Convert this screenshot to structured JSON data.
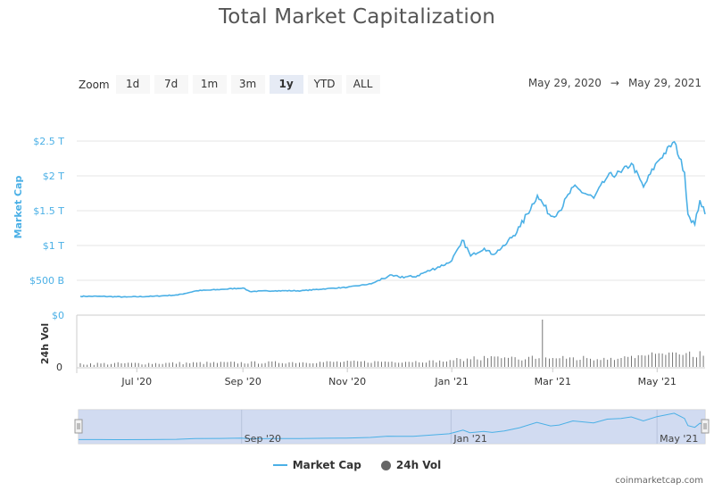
{
  "page": {
    "title": "Total Market Capitalization",
    "credit": "coinmarketcap.com"
  },
  "zoom": {
    "label": "Zoom",
    "buttons": [
      "1d",
      "7d",
      "1m",
      "3m",
      "1y",
      "YTD",
      "ALL"
    ],
    "active": "1y"
  },
  "range": {
    "from": "May 29, 2020",
    "arrow": "→",
    "to": "May 29, 2021"
  },
  "colors": {
    "market_cap": "#4bb0e6",
    "volume": "#666666",
    "navigator_fill": "#c9d5ee",
    "grid": "#e6e6e6"
  },
  "chart_data": {
    "type": "line",
    "title": "Total Market Capitalization",
    "x_labels": [
      "Jul '20",
      "Sep '20",
      "Nov '20",
      "Jan '21",
      "Mar '21",
      "May '21"
    ],
    "x_label_dates": [
      "2020-07-01",
      "2020-09-01",
      "2020-11-01",
      "2021-01-01",
      "2021-03-01",
      "2021-05-01"
    ],
    "x_range": [
      "2020-05-29",
      "2021-05-29"
    ],
    "series": [
      {
        "name": "Market Cap",
        "axis": "Market Cap",
        "unit": "USD trillions",
        "points": [
          [
            "2020-05-29",
            0.27
          ],
          [
            "2020-06-10",
            0.27
          ],
          [
            "2020-06-25",
            0.26
          ],
          [
            "2020-07-10",
            0.27
          ],
          [
            "2020-07-25",
            0.29
          ],
          [
            "2020-08-05",
            0.35
          ],
          [
            "2020-08-20",
            0.37
          ],
          [
            "2020-09-01",
            0.39
          ],
          [
            "2020-09-05",
            0.34
          ],
          [
            "2020-09-20",
            0.35
          ],
          [
            "2020-10-05",
            0.35
          ],
          [
            "2020-10-20",
            0.38
          ],
          [
            "2020-11-01",
            0.4
          ],
          [
            "2020-11-15",
            0.45
          ],
          [
            "2020-11-25",
            0.56
          ],
          [
            "2020-12-01",
            0.55
          ],
          [
            "2020-12-10",
            0.55
          ],
          [
            "2020-12-20",
            0.65
          ],
          [
            "2020-12-31",
            0.76
          ],
          [
            "2021-01-08",
            1.07
          ],
          [
            "2021-01-12",
            0.85
          ],
          [
            "2021-01-20",
            0.96
          ],
          [
            "2021-01-25",
            0.87
          ],
          [
            "2021-02-01",
            1.0
          ],
          [
            "2021-02-10",
            1.27
          ],
          [
            "2021-02-20",
            1.72
          ],
          [
            "2021-02-28",
            1.42
          ],
          [
            "2021-03-05",
            1.5
          ],
          [
            "2021-03-13",
            1.84
          ],
          [
            "2021-03-25",
            1.68
          ],
          [
            "2021-04-02",
            1.99
          ],
          [
            "2021-04-10",
            2.05
          ],
          [
            "2021-04-16",
            2.18
          ],
          [
            "2021-04-23",
            1.84
          ],
          [
            "2021-05-01",
            2.2
          ],
          [
            "2021-05-11",
            2.49
          ],
          [
            "2021-05-17",
            2.05
          ],
          [
            "2021-05-19",
            1.45
          ],
          [
            "2021-05-23",
            1.3
          ],
          [
            "2021-05-26",
            1.65
          ],
          [
            "2021-05-29",
            1.45
          ]
        ],
        "y_ticks": [
          "$0",
          "$500 B",
          "$1 T",
          "$1.5 T",
          "$2 T",
          "$2.5 T"
        ],
        "y_tick_values": [
          0,
          0.5,
          1.0,
          1.5,
          2.0,
          2.5
        ],
        "y_range": [
          0,
          2.5
        ]
      },
      {
        "name": "24h Vol",
        "axis": "24h Vol",
        "points_summary": "daily bars; mostly low; one tall spike near 2021-02-23; elevated in May 2021",
        "y_ticks": [
          "0"
        ],
        "spike_date": "2021-02-23"
      }
    ],
    "legend": {
      "placement": "bottom-center",
      "entries": [
        "Market Cap",
        "24h Vol"
      ]
    },
    "grid": true,
    "navigator": {
      "labels": [
        "Sep '20",
        "Jan '21",
        "May '21"
      ]
    }
  }
}
